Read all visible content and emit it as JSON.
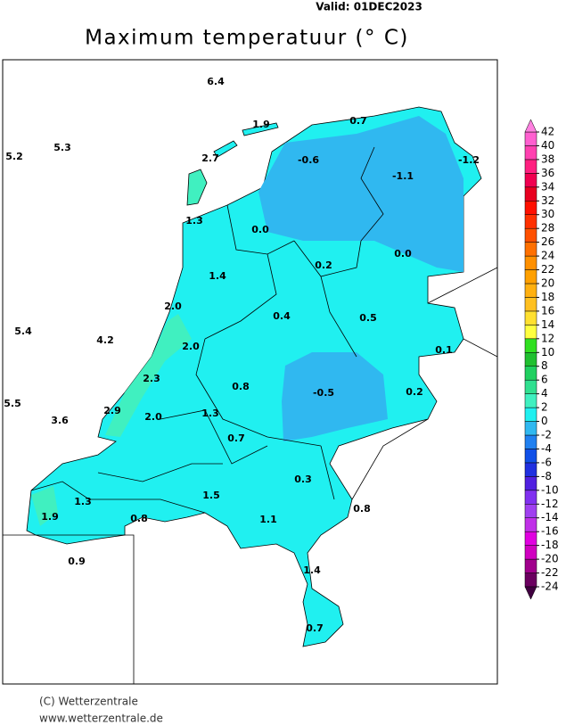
{
  "header": {
    "valid": "Valid:  01DEC2023",
    "title": "Maximum temperatuur (° C)"
  },
  "stations": {
    "values": [
      6.4,
      5.3,
      5.2,
      1.9,
      0.7,
      2.7,
      -0.6,
      -1.1,
      -1.2,
      1.3,
      0.0,
      0.2,
      0.0,
      1.4,
      2.0,
      0.4,
      0.5,
      5.4,
      4.2,
      2.0,
      0.1,
      2.3,
      0.8,
      -0.5,
      0.2,
      5.5,
      2.9,
      2.0,
      1.3,
      3.6,
      0.7,
      0.3,
      1.5,
      1.3,
      0.8,
      1.1,
      1.9,
      0.8,
      0.9,
      1.4,
      0.7
    ],
    "value_labels": [
      "6.4",
      "5.3",
      "5.2",
      "1.9",
      "0.7",
      "2.7",
      "-0.6",
      "-1.1",
      "-1.2",
      "1.3",
      "0.0",
      "0.2",
      "0.0",
      "1.4",
      "2.0",
      "0.4",
      "0.5",
      "5.4",
      "4.2",
      "2.0",
      "0.1",
      "2.3",
      "0.8",
      "-0.5",
      "0.2",
      "5.5",
      "2.9",
      "2.0",
      "1.3",
      "3.6",
      "0.7",
      "0.3",
      "1.5",
      "1.3",
      "0.8",
      "1.1",
      "1.9",
      "0.8",
      "0.9",
      "1.4",
      "0.7"
    ]
  },
  "legend": {
    "ticks": [
      -24,
      -22,
      -20,
      -18,
      -16,
      -14,
      -12,
      -10,
      -8,
      -6,
      -4,
      -2,
      0,
      2,
      4,
      6,
      8,
      10,
      12,
      14,
      16,
      18,
      20,
      22,
      24,
      26,
      28,
      30,
      32,
      34,
      36,
      38,
      40,
      42
    ],
    "colors": [
      "#400040",
      "#6b0060",
      "#a0008c",
      "#d000c0",
      "#e000e0",
      "#c030e8",
      "#a040f0",
      "#8030f0",
      "#5020e0",
      "#2030e0",
      "#1050e8",
      "#2080f0",
      "#30b8f0",
      "#20f0f0",
      "#40f0c0",
      "#30e090",
      "#20d060",
      "#20c030",
      "#30e020",
      "#ffff40",
      "#ffe030",
      "#ffc020",
      "#ffb010",
      "#ffa000",
      "#ff9000",
      "#ff7000",
      "#ff5000",
      "#ff3000",
      "#ff1000",
      "#e80020",
      "#f00050",
      "#ff2080",
      "#ff40b0",
      "#ff60d0",
      "#ff80e0"
    ]
  },
  "footer": {
    "copyright": "(C) Wetterzentrale",
    "url": "www.wetterzentrale.de"
  }
}
